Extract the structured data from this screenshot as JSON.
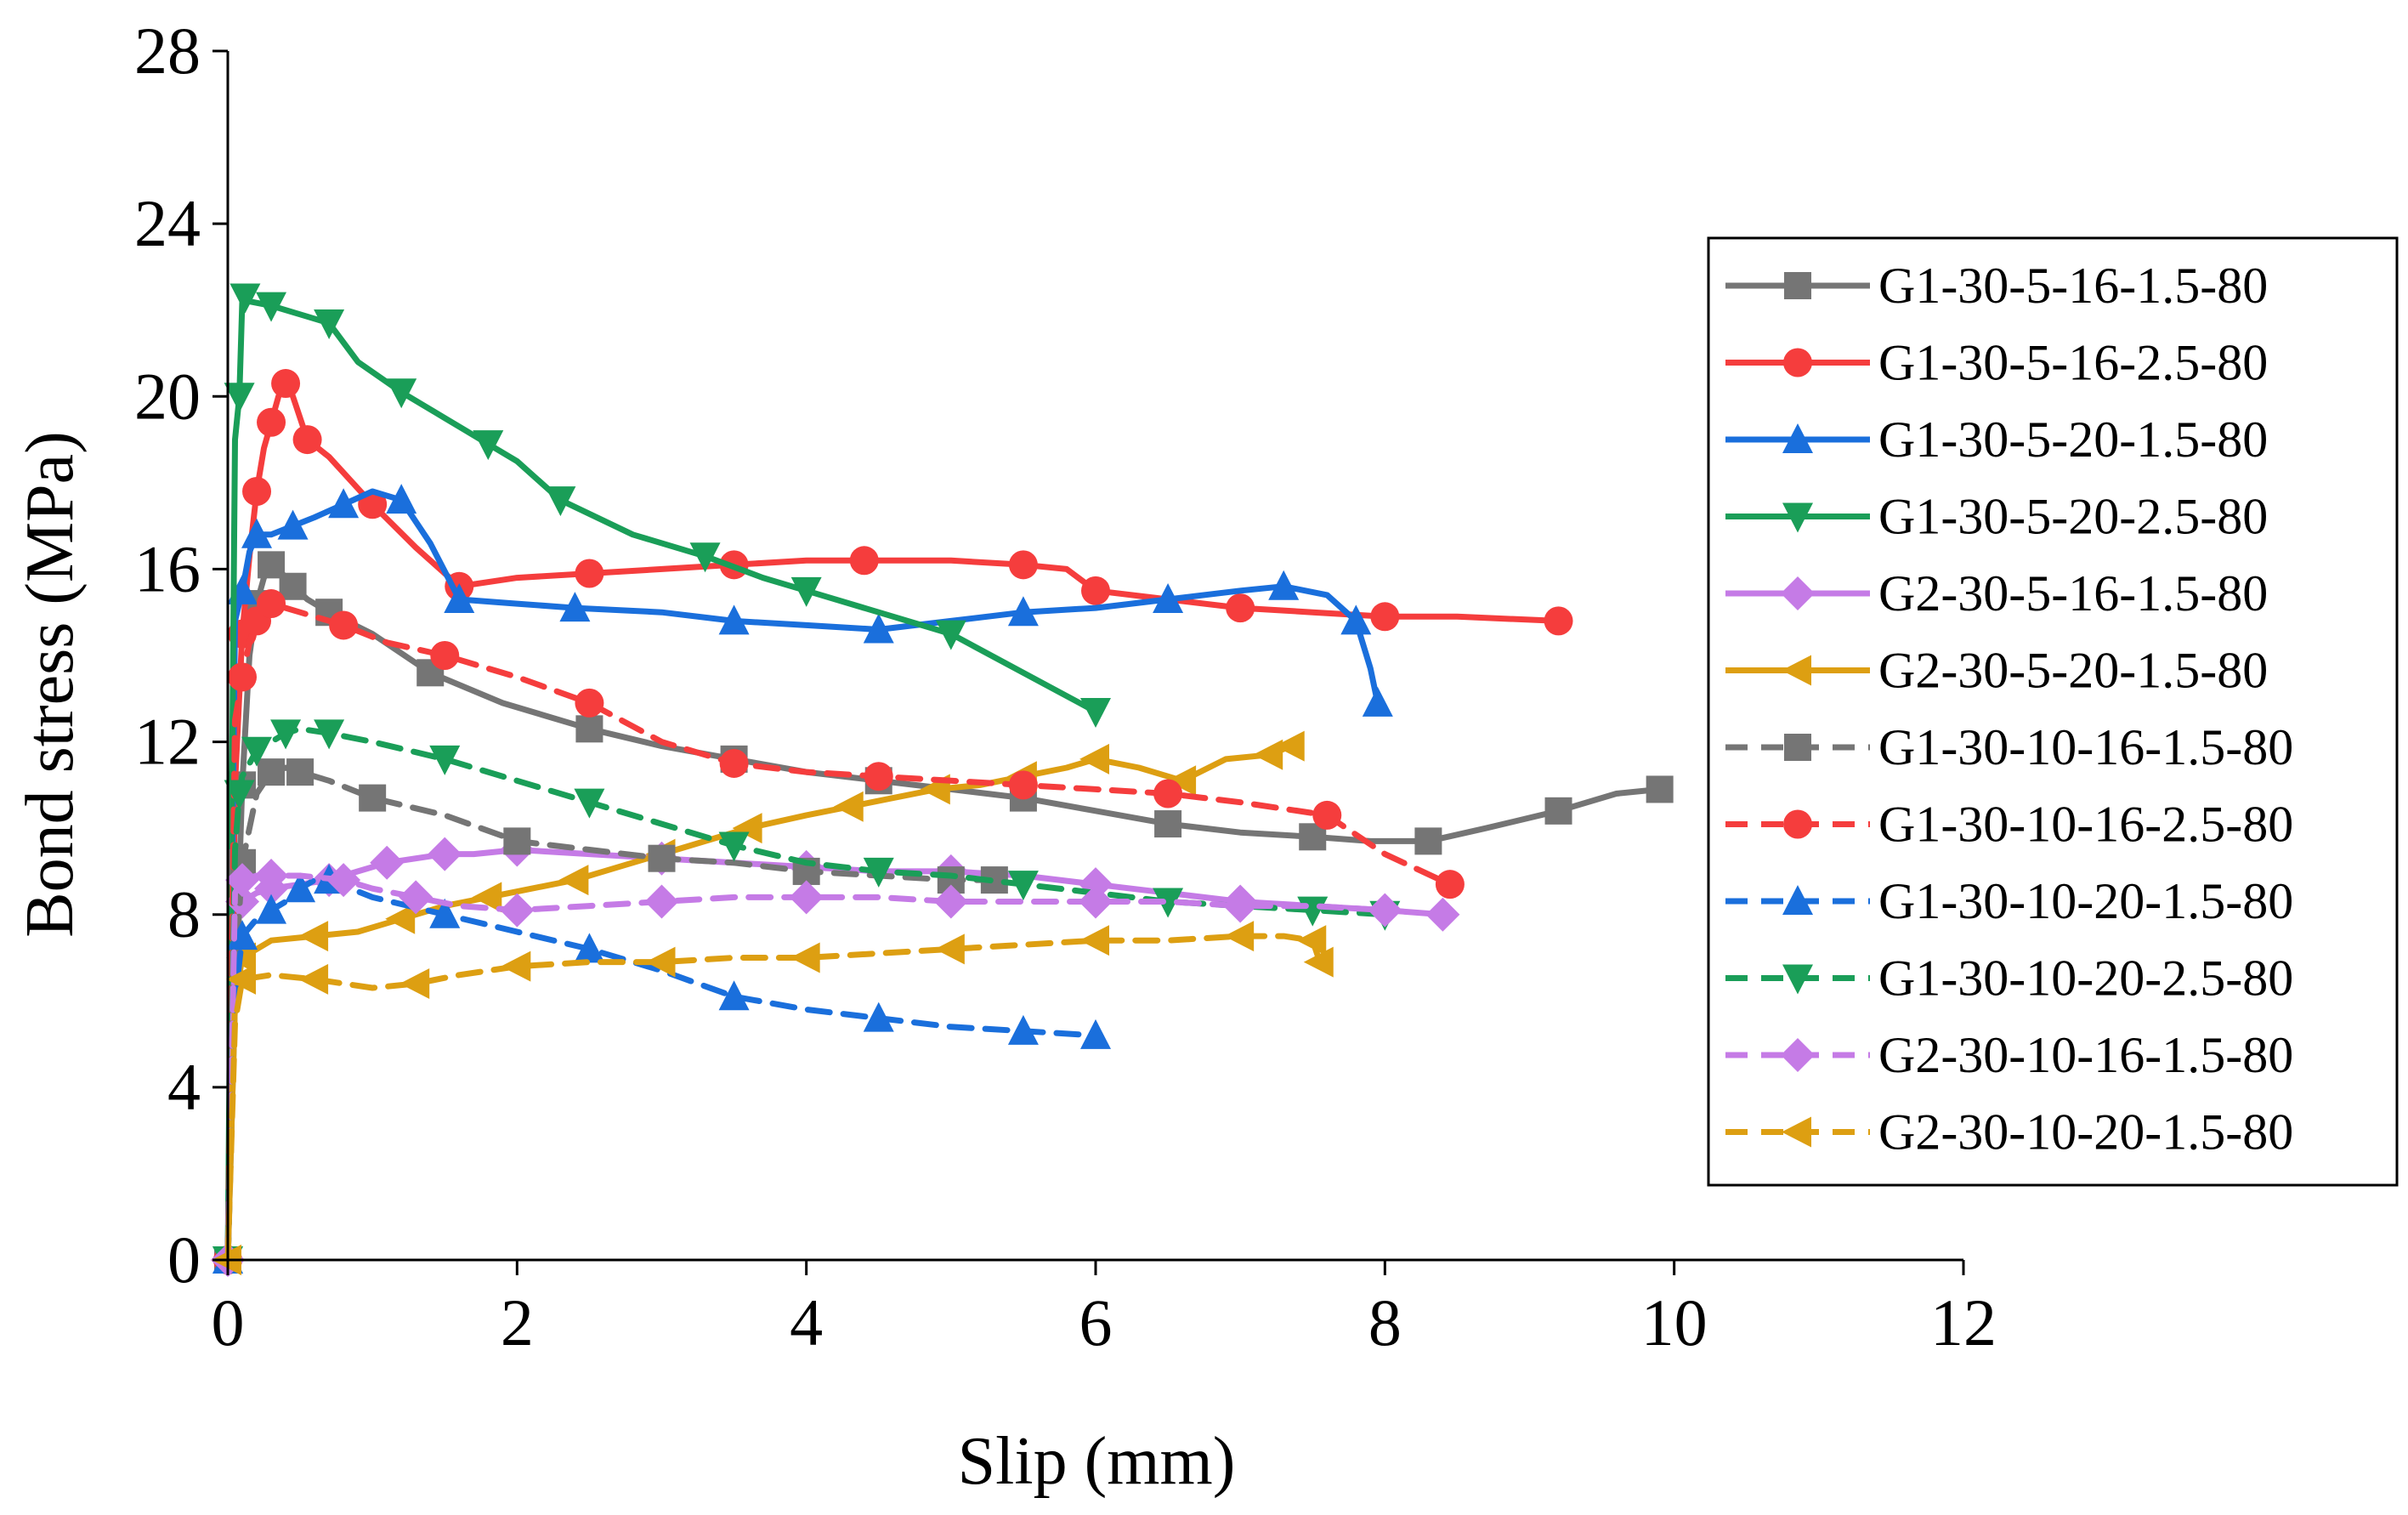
{
  "chart_data": {
    "type": "line",
    "title": "",
    "xlabel": "Slip (mm)",
    "ylabel": "Bond stress (MPa)",
    "xlim": [
      0,
      12
    ],
    "ylim": [
      0,
      28
    ],
    "xticks": [
      0,
      2,
      4,
      6,
      8,
      10,
      12
    ],
    "yticks": [
      0,
      4,
      8,
      12,
      16,
      20,
      24,
      28
    ],
    "xtick_labels": [
      "0",
      "2",
      "4",
      "6",
      "8",
      "10",
      "12"
    ],
    "ytick_labels": [
      "0",
      "4",
      "8",
      "12",
      "16",
      "20",
      "24",
      "28"
    ],
    "legend_position": "right",
    "grid": false,
    "series": [
      {
        "name": "G1-30-5-16-1.5-80",
        "color": "#757575",
        "dash": "solid",
        "marker": "square",
        "x": [
          0,
          0.05,
          0.1,
          0.15,
          0.2,
          0.25,
          0.3,
          0.35,
          0.45,
          0.55,
          0.7,
          1.0,
          1.4,
          1.9,
          2.5,
          3.0,
          3.5,
          4.0,
          4.5,
          5.0,
          5.5,
          6.0,
          6.5,
          7.0,
          7.5,
          7.9,
          8.3,
          8.7,
          9.2,
          9.6,
          9.9
        ],
        "y": [
          0,
          6,
          11,
          14,
          15.2,
          15.8,
          16.1,
          16.0,
          15.6,
          15.3,
          15.0,
          14.5,
          13.6,
          12.9,
          12.3,
          11.9,
          11.6,
          11.3,
          11.1,
          10.9,
          10.7,
          10.4,
          10.1,
          9.9,
          9.8,
          9.7,
          9.7,
          10.0,
          10.4,
          10.8,
          10.9
        ]
      },
      {
        "name": "G1-30-5-16-2.5-80",
        "color": "#f53d3d",
        "dash": "solid",
        "marker": "circle",
        "x": [
          0,
          0.05,
          0.1,
          0.15,
          0.2,
          0.25,
          0.3,
          0.35,
          0.4,
          0.45,
          0.55,
          0.7,
          1.0,
          1.3,
          1.6,
          2.0,
          2.5,
          3.0,
          3.5,
          4.0,
          4.4,
          5.0,
          5.5,
          5.8,
          6.0,
          6.5,
          7.0,
          7.5,
          8.0,
          8.5,
          9.2
        ],
        "y": [
          0,
          11,
          14.5,
          16.3,
          17.8,
          18.8,
          19.4,
          20.0,
          20.3,
          20.0,
          19.0,
          18.6,
          17.5,
          16.5,
          15.6,
          15.8,
          15.9,
          16.0,
          16.1,
          16.2,
          16.2,
          16.2,
          16.1,
          16.0,
          15.5,
          15.3,
          15.1,
          15.0,
          14.9,
          14.9,
          14.8
        ]
      },
      {
        "name": "G1-30-5-20-1.5-80",
        "color": "#1a6fdc",
        "dash": "solid",
        "marker": "triangle-up",
        "x": [
          0,
          0.05,
          0.1,
          0.15,
          0.2,
          0.3,
          0.45,
          0.6,
          0.8,
          1.0,
          1.2,
          1.4,
          1.6,
          2.0,
          2.4,
          3.0,
          3.5,
          4.0,
          4.5,
          5.0,
          5.5,
          6.0,
          6.5,
          7.0,
          7.3,
          7.6,
          7.8,
          7.9,
          7.95
        ],
        "y": [
          0,
          14.8,
          15.5,
          16.4,
          16.8,
          16.8,
          17.0,
          17.2,
          17.5,
          17.8,
          17.6,
          16.6,
          15.3,
          15.2,
          15.1,
          15.0,
          14.8,
          14.7,
          14.6,
          14.8,
          15.0,
          15.1,
          15.3,
          15.5,
          15.6,
          15.4,
          14.8,
          13.7,
          12.9
        ]
      },
      {
        "name": "G1-30-5-20-2.5-80",
        "color": "#1a9e58",
        "dash": "solid",
        "marker": "triangle-down",
        "x": [
          0,
          0.05,
          0.08,
          0.1,
          0.12,
          0.15,
          0.3,
          0.5,
          0.7,
          0.9,
          1.2,
          1.5,
          1.8,
          2.0,
          2.3,
          2.8,
          3.3,
          3.7,
          4.0,
          4.5,
          5.0,
          5.5,
          6.0
        ],
        "y": [
          0,
          19.0,
          20.0,
          22.2,
          22.3,
          22.2,
          22.1,
          21.9,
          21.7,
          20.8,
          20.1,
          19.5,
          18.9,
          18.5,
          17.6,
          16.8,
          16.3,
          15.8,
          15.5,
          15.0,
          14.5,
          13.6,
          12.7
        ]
      },
      {
        "name": "G2-30-5-16-1.5-80",
        "color": "#c57be6",
        "dash": "solid",
        "marker": "diamond",
        "x": [
          0,
          0.05,
          0.1,
          0.2,
          0.3,
          0.5,
          0.7,
          0.9,
          1.1,
          1.3,
          1.5,
          1.7,
          2.0,
          2.5,
          3.0,
          3.5,
          4.0,
          4.5,
          5.0,
          5.5,
          6.0,
          6.5,
          7.0,
          7.5,
          8.0,
          8.4
        ],
        "y": [
          0,
          7.5,
          8.3,
          8.5,
          8.6,
          8.7,
          8.8,
          9.0,
          9.2,
          9.3,
          9.4,
          9.4,
          9.5,
          9.4,
          9.3,
          9.2,
          9.1,
          9.0,
          9.0,
          8.9,
          8.7,
          8.5,
          8.3,
          8.2,
          8.1,
          8.0
        ]
      },
      {
        "name": "G2-30-5-20-1.5-80",
        "color": "#dd9f12",
        "dash": "solid",
        "marker": "triangle-left",
        "x": [
          0,
          0.05,
          0.1,
          0.3,
          0.6,
          0.9,
          1.2,
          1.5,
          1.8,
          2.1,
          2.4,
          2.7,
          3.0,
          3.3,
          3.6,
          4.0,
          4.3,
          4.6,
          4.9,
          5.2,
          5.5,
          5.8,
          6.0,
          6.3,
          6.6,
          6.9,
          7.2,
          7.35
        ],
        "y": [
          0,
          6.0,
          7.0,
          7.4,
          7.5,
          7.6,
          7.9,
          8.2,
          8.4,
          8.6,
          8.8,
          9.1,
          9.4,
          9.7,
          10.0,
          10.3,
          10.5,
          10.7,
          10.9,
          11.0,
          11.2,
          11.4,
          11.6,
          11.4,
          11.1,
          11.6,
          11.7,
          11.9
        ]
      },
      {
        "name": "G1-30-10-16-1.5-80",
        "color": "#757575",
        "dash": "dashed",
        "marker": "square",
        "x": [
          0,
          0.05,
          0.1,
          0.2,
          0.3,
          0.4,
          0.5,
          0.7,
          1.0,
          1.5,
          2.0,
          2.5,
          3.0,
          3.5,
          4.0,
          4.5,
          5.0,
          5.3
        ],
        "y": [
          0,
          6.5,
          9.2,
          10.8,
          11.3,
          11.4,
          11.3,
          11.1,
          10.7,
          10.3,
          9.7,
          9.5,
          9.3,
          9.2,
          9.0,
          8.9,
          8.8,
          8.8
        ]
      },
      {
        "name": "G1-30-10-16-2.5-80",
        "color": "#f53d3d",
        "dash": "dashed",
        "marker": "circle",
        "x": [
          0,
          0.05,
          0.1,
          0.15,
          0.2,
          0.25,
          0.3,
          0.5,
          0.8,
          1.1,
          1.5,
          2.0,
          2.5,
          3.0,
          3.5,
          4.0,
          4.5,
          5.0,
          5.5,
          6.0,
          6.5,
          7.0,
          7.6,
          8.0,
          8.45
        ],
        "y": [
          0,
          12.5,
          13.5,
          14.3,
          14.8,
          15.1,
          15.2,
          15.0,
          14.7,
          14.3,
          14.0,
          13.5,
          12.9,
          12.0,
          11.5,
          11.3,
          11.2,
          11.1,
          11.0,
          10.9,
          10.8,
          10.6,
          10.3,
          9.4,
          8.7
        ]
      },
      {
        "name": "G1-30-10-20-1.5-80",
        "color": "#1a6fdc",
        "dash": "dashed",
        "marker": "triangle-up",
        "x": [
          0,
          0.05,
          0.1,
          0.2,
          0.3,
          0.4,
          0.5,
          0.6,
          0.7,
          1.0,
          1.5,
          2.0,
          2.5,
          3.0,
          3.5,
          4.0,
          4.5,
          5.0,
          5.5,
          6.0
        ],
        "y": [
          0,
          6.0,
          7.5,
          7.9,
          8.1,
          8.3,
          8.6,
          8.8,
          8.8,
          8.4,
          8.0,
          7.6,
          7.2,
          6.7,
          6.1,
          5.8,
          5.6,
          5.4,
          5.3,
          5.2
        ]
      },
      {
        "name": "G1-30-10-20-2.5-80",
        "color": "#1a9e58",
        "dash": "dashed",
        "marker": "triangle-down",
        "x": [
          0,
          0.05,
          0.08,
          0.1,
          0.2,
          0.3,
          0.4,
          0.5,
          0.7,
          1.0,
          1.5,
          2.0,
          2.5,
          3.0,
          3.5,
          4.0,
          4.5,
          5.0,
          5.5,
          6.0,
          6.5,
          7.0,
          7.5,
          8.0
        ],
        "y": [
          0,
          9.5,
          10.8,
          11.2,
          11.8,
          12.0,
          12.2,
          12.3,
          12.2,
          12.0,
          11.6,
          11.1,
          10.6,
          10.1,
          9.6,
          9.2,
          9.0,
          8.9,
          8.7,
          8.5,
          8.3,
          8.2,
          8.1,
          8.0
        ]
      },
      {
        "name": "G2-30-10-16-1.5-80",
        "color": "#c57be6",
        "dash": "dashed",
        "marker": "diamond",
        "x": [
          0,
          0.05,
          0.1,
          0.2,
          0.3,
          0.5,
          0.8,
          1.0,
          1.3,
          1.6,
          2.0,
          2.5,
          3.0,
          3.5,
          4.0,
          4.5,
          5.0,
          5.5,
          6.0,
          6.5,
          7.0,
          7.5,
          8.0
        ],
        "y": [
          0,
          8.5,
          8.8,
          8.9,
          8.9,
          8.9,
          8.8,
          8.6,
          8.4,
          8.2,
          8.1,
          8.2,
          8.3,
          8.4,
          8.4,
          8.4,
          8.3,
          8.3,
          8.3,
          8.3,
          8.2,
          8.2,
          8.1
        ]
      },
      {
        "name": "G2-30-10-20-1.5-80",
        "color": "#dd9f12",
        "dash": "dashed",
        "marker": "triangle-left",
        "x": [
          0,
          0.05,
          0.1,
          0.3,
          0.6,
          1.0,
          1.3,
          1.6,
          2.0,
          2.5,
          3.0,
          3.5,
          4.0,
          4.5,
          5.0,
          5.5,
          6.0,
          6.5,
          7.0,
          7.3,
          7.5,
          7.55
        ],
        "y": [
          0,
          5.5,
          6.5,
          6.6,
          6.5,
          6.3,
          6.4,
          6.6,
          6.8,
          6.9,
          6.9,
          7.0,
          7.0,
          7.1,
          7.2,
          7.3,
          7.4,
          7.4,
          7.5,
          7.5,
          7.4,
          6.9
        ]
      }
    ]
  }
}
